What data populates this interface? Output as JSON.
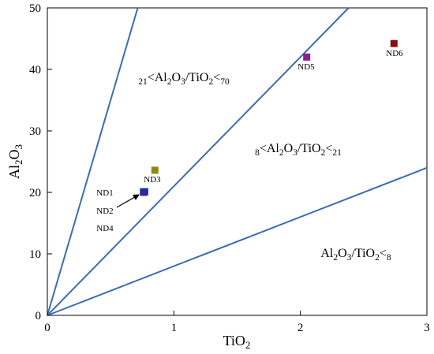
{
  "chart_data": {
    "type": "scatter",
    "xlabel": "TiO2",
    "ylabel": "Al2O3",
    "xlim": [
      0,
      3
    ],
    "ylim": [
      0,
      50
    ],
    "xticks": [
      "0",
      "1",
      "2",
      "3"
    ],
    "yticks": [
      "0",
      "10",
      "20",
      "30",
      "40",
      "50"
    ],
    "grid": false,
    "boundary_lines": [
      {
        "ratio": 8,
        "color": "#3e6cb0"
      },
      {
        "ratio": 21,
        "color": "#3e6cb0"
      },
      {
        "ratio": 70,
        "color": "#3e6cb0"
      }
    ],
    "regions": [
      {
        "label": "21<Al2O3/TiO2<70"
      },
      {
        "label": "8<Al2O3/TiO2<21"
      },
      {
        "label": "Al2O3/TiO2<8"
      }
    ],
    "points": [
      {
        "name": "ND1",
        "x": 0.76,
        "y": 20.1,
        "color": "#0b6b2a"
      },
      {
        "name": "ND2",
        "x": 0.77,
        "y": 20.1,
        "color": "#1f2fb8"
      },
      {
        "name": "ND3",
        "x": 0.85,
        "y": 23.6,
        "color": "#8e8a14"
      },
      {
        "name": "ND4",
        "x": 0.76,
        "y": 20.0,
        "color": "#2a2aa0"
      },
      {
        "name": "ND5",
        "x": 2.05,
        "y": 42.0,
        "color": "#8e1f8e"
      },
      {
        "name": "ND6",
        "x": 2.74,
        "y": 44.2,
        "color": "#8b0d0d"
      }
    ],
    "point_labels": [
      {
        "text": "ND1"
      },
      {
        "text": "ND2"
      },
      {
        "text": "ND3"
      },
      {
        "text": "ND4"
      },
      {
        "text": "ND5"
      },
      {
        "text": "ND6"
      }
    ]
  }
}
